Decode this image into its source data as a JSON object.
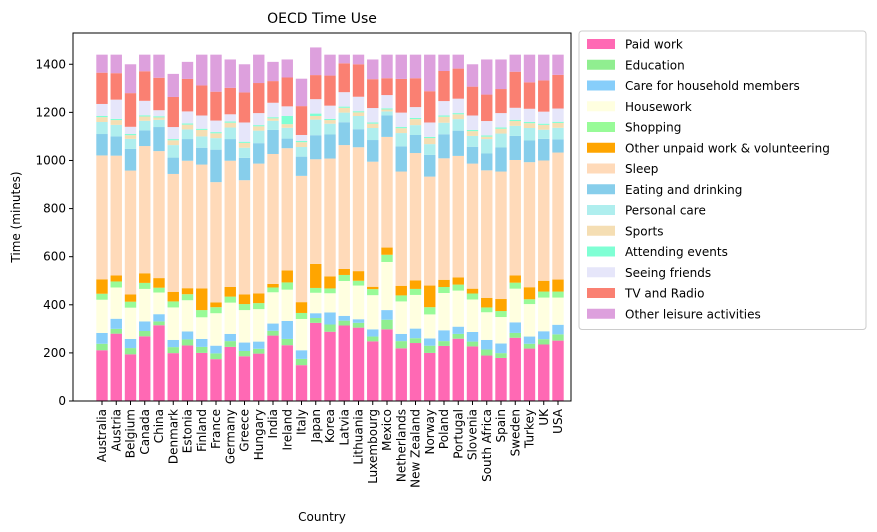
{
  "chart_data": {
    "type": "bar",
    "stacked": true,
    "title": "OECD Time Use",
    "xlabel": "Country",
    "ylabel": "Time (minutes)",
    "ylim": [
      0,
      1530
    ],
    "yticks": [
      0,
      200,
      400,
      600,
      800,
      1000,
      1200,
      1400
    ],
    "legend_position": "outside-right",
    "grid": false,
    "categories": [
      "Australia",
      "Austria",
      "Belgium",
      "Canada",
      "China",
      "Denmark",
      "Estonia",
      "Finland",
      "France",
      "Germany",
      "Greece",
      "Hungary",
      "India",
      "Ireland",
      "Italy",
      "Japan",
      "Korea",
      "Latvia",
      "Lithuania",
      "Luxembourg",
      "Mexico",
      "Netherlands",
      "New Zealand",
      "Norway",
      "Poland",
      "Portugal",
      "Slovenia",
      "South Africa",
      "Spain",
      "Sweden",
      "Turkey",
      "UK",
      "USA"
    ],
    "series": [
      {
        "name": "Paid work",
        "color": "#ff69b4",
        "values": [
          211,
          280,
          194,
          269,
          315,
          199,
          231,
          200,
          174,
          225,
          186,
          197,
          272,
          232,
          149,
          325,
          288,
          314,
          305,
          248,
          298,
          219,
          241,
          200,
          229,
          259,
          227,
          189,
          179,
          263,
          218,
          235,
          251
        ]
      },
      {
        "name": "Education",
        "color": "#90ee90",
        "values": [
          27,
          20,
          26,
          22,
          16,
          25,
          25,
          25,
          24,
          24,
          22,
          20,
          20,
          26,
          26,
          20,
          30,
          20,
          20,
          20,
          40,
          30,
          20,
          30,
          20,
          20,
          20,
          25,
          20,
          20,
          20,
          22,
          26
        ]
      },
      {
        "name": "Care for household members",
        "color": "#87cefa",
        "values": [
          45,
          42,
          38,
          40,
          30,
          30,
          33,
          33,
          32,
          30,
          35,
          30,
          30,
          75,
          36,
          20,
          50,
          20,
          15,
          30,
          40,
          30,
          40,
          30,
          45,
          30,
          40,
          40,
          40,
          44,
          30,
          33,
          40
        ]
      },
      {
        "name": "Housework",
        "color": "#ffffe0",
        "values": [
          138,
          130,
          130,
          135,
          90,
          135,
          130,
          90,
          135,
          130,
          135,
          135,
          130,
          130,
          130,
          85,
          80,
          145,
          140,
          142,
          200,
          135,
          140,
          100,
          155,
          150,
          135,
          115,
          110,
          140,
          135,
          140,
          113
        ]
      },
      {
        "name": "Shopping",
        "color": "#98fb98",
        "values": [
          25,
          25,
          25,
          25,
          20,
          25,
          25,
          30,
          25,
          25,
          25,
          25,
          20,
          30,
          25,
          20,
          20,
          25,
          20,
          25,
          30,
          25,
          25,
          30,
          25,
          25,
          25,
          20,
          25,
          25,
          20,
          25,
          25
        ]
      },
      {
        "name": "Other unpaid work & volunteering",
        "color": "#ffa500",
        "values": [
          60,
          25,
          30,
          40,
          40,
          40,
          25,
          90,
          20,
          40,
          40,
          40,
          15,
          50,
          45,
          100,
          50,
          25,
          40,
          10,
          30,
          40,
          35,
          90,
          30,
          30,
          20,
          40,
          50,
          30,
          50,
          45,
          50
        ]
      },
      {
        "name": "Sleep",
        "color": "#ffdab9",
        "values": [
          515,
          498,
          515,
          529,
          528,
          490,
          530,
          515,
          500,
          525,
          475,
          540,
          540,
          508,
          525,
          435,
          490,
          515,
          515,
          520,
          460,
          475,
          530,
          453,
          505,
          505,
          520,
          530,
          530,
          480,
          520,
          500,
          528
        ]
      },
      {
        "name": "Eating and drinking",
        "color": "#87ceeb",
        "values": [
          89,
          80,
          90,
          65,
          100,
          68,
          90,
          70,
          135,
          90,
          93,
          85,
          100,
          40,
          80,
          100,
          100,
          95,
          75,
          90,
          90,
          105,
          75,
          90,
          100,
          105,
          70,
          70,
          100,
          100,
          90,
          90,
          55
        ]
      },
      {
        "name": "Personal care",
        "color": "#afeeee",
        "values": [
          50,
          48,
          42,
          40,
          30,
          52,
          40,
          47,
          48,
          48,
          42,
          52,
          38,
          45,
          40,
          65,
          45,
          40,
          55,
          50,
          16,
          55,
          41,
          45,
          48,
          48,
          45,
          60,
          58,
          42,
          52,
          38,
          48
        ]
      },
      {
        "name": "Sports",
        "color": "#f5deb3",
        "values": [
          20,
          20,
          15,
          18,
          10,
          20,
          20,
          27,
          20,
          20,
          20,
          18,
          10,
          15,
          20,
          15,
          15,
          20,
          15,
          18,
          8,
          20,
          25,
          25,
          25,
          20,
          20,
          10,
          20,
          20,
          20,
          20,
          20
        ]
      },
      {
        "name": "Attending events",
        "color": "#7fffd4",
        "values": [
          5,
          5,
          5,
          5,
          5,
          5,
          5,
          5,
          5,
          5,
          5,
          5,
          5,
          34,
          5,
          10,
          5,
          5,
          5,
          5,
          5,
          5,
          5,
          5,
          5,
          5,
          5,
          5,
          5,
          5,
          5,
          5,
          5
        ]
      },
      {
        "name": "Seeing friends",
        "color": "#e6e6fa",
        "values": [
          50,
          80,
          30,
          60,
          25,
          50,
          50,
          55,
          48,
          30,
          80,
          50,
          60,
          40,
          25,
          60,
          55,
          60,
          60,
          60,
          55,
          60,
          45,
          60,
          60,
          60,
          60,
          60,
          60,
          50,
          55,
          50,
          55
        ]
      },
      {
        "name": "TV and Radio",
        "color": "#fa8072",
        "values": [
          130,
          110,
          140,
          123,
          135,
          125,
          135,
          125,
          120,
          110,
          125,
          125,
          90,
          120,
          120,
          100,
          125,
          120,
          135,
          120,
          70,
          140,
          120,
          130,
          125,
          125,
          120,
          110,
          100,
          150,
          110,
          130,
          140
        ]
      },
      {
        "name": "Other leisure activities",
        "color": "#dda0dd",
        "values": [
          75,
          77,
          120,
          69,
          96,
          96,
          71,
          128,
          154,
          118,
          117,
          118,
          80,
          75,
          114,
          115,
          87,
          36,
          40,
          82,
          98,
          101,
          98,
          152,
          68,
          58,
          93,
          146,
          123,
          71,
          115,
          107,
          84
        ]
      }
    ]
  }
}
